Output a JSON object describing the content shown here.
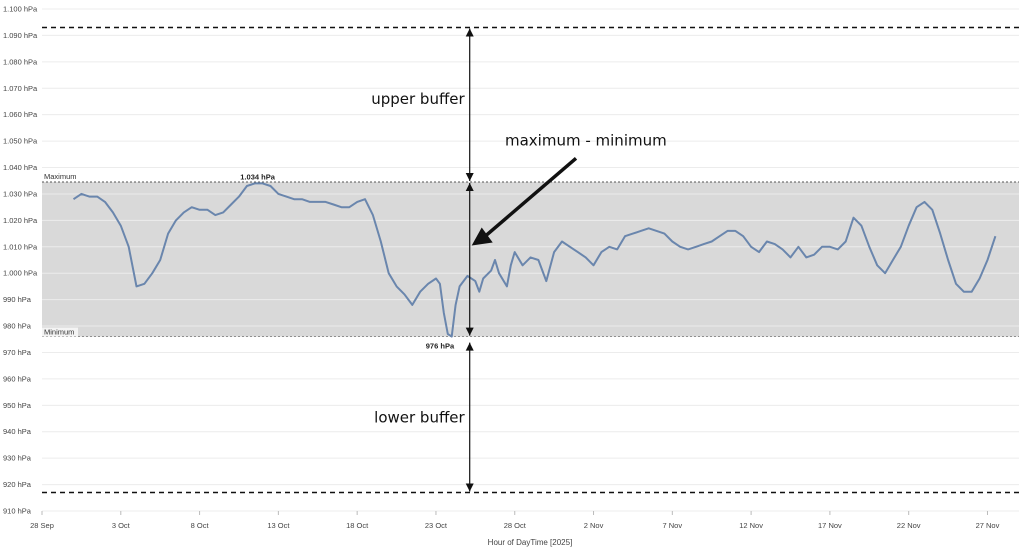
{
  "chart_data": {
    "type": "line",
    "title": "",
    "xlabel": "Hour of DayTime [2025]",
    "ylabel": "",
    "x_start": "2025-09-28",
    "x_end": "2025-11-29",
    "x_ticks": [
      {
        "label": "28 Sep",
        "date": "2025-09-28"
      },
      {
        "label": "3 Oct",
        "date": "2025-10-03"
      },
      {
        "label": "8 Oct",
        "date": "2025-10-08"
      },
      {
        "label": "13 Oct",
        "date": "2025-10-13"
      },
      {
        "label": "18 Oct",
        "date": "2025-10-18"
      },
      {
        "label": "23 Oct",
        "date": "2025-10-23"
      },
      {
        "label": "28 Oct",
        "date": "2025-10-28"
      },
      {
        "label": "2 Nov",
        "date": "2025-11-02"
      },
      {
        "label": "7 Nov",
        "date": "2025-11-07"
      },
      {
        "label": "12 Nov",
        "date": "2025-11-12"
      },
      {
        "label": "17 Nov",
        "date": "2025-11-17"
      },
      {
        "label": "22 Nov",
        "date": "2025-11-22"
      },
      {
        "label": "27 Nov",
        "date": "2025-11-27"
      }
    ],
    "ylim": [
      910,
      1100
    ],
    "y_ticks": [
      {
        "value": 1100,
        "label": "1.100 hPa"
      },
      {
        "value": 1090,
        "label": "1.090 hPa"
      },
      {
        "value": 1080,
        "label": "1.080 hPa"
      },
      {
        "value": 1070,
        "label": "1.070 hPa"
      },
      {
        "value": 1060,
        "label": "1.060 hPa"
      },
      {
        "value": 1050,
        "label": "1.050 hPa"
      },
      {
        "value": 1040,
        "label": "1.040 hPa"
      },
      {
        "value": 1030,
        "label": "1.030 hPa"
      },
      {
        "value": 1020,
        "label": "1.020 hPa"
      },
      {
        "value": 1010,
        "label": "1.010 hPa"
      },
      {
        "value": 1000,
        "label": "1.000 hPa"
      },
      {
        "value": 990,
        "label": "990 hPa"
      },
      {
        "value": 980,
        "label": "980 hPa"
      },
      {
        "value": 970,
        "label": "970 hPa"
      },
      {
        "value": 960,
        "label": "960 hPa"
      },
      {
        "value": 950,
        "label": "950 hPa"
      },
      {
        "value": 940,
        "label": "940 hPa"
      },
      {
        "value": 930,
        "label": "930 hPa"
      },
      {
        "value": 920,
        "label": "920 hPa"
      },
      {
        "value": 910,
        "label": "910 hPa"
      }
    ],
    "grid": true,
    "band": {
      "min": 976,
      "max": 1034.5,
      "max_label": "Maximum",
      "min_label": "Minimum",
      "color": "#d9d9d9"
    },
    "buffer_lines": {
      "upper": 1093,
      "lower": 917
    },
    "peak": {
      "date": "2025-10-12",
      "value": 1034,
      "label": "1.034 hPa"
    },
    "trough": {
      "date": "2025-10-23",
      "value": 976,
      "label": "976 hPa"
    },
    "annotations": {
      "upper": "upper buffer",
      "range": "maximum - minimum",
      "lower": "lower buffer",
      "marker_date": "2025-10-24.8"
    },
    "series": [
      {
        "color": "#6a86ad",
        "points": [
          [
            "2025-09-30T00",
            1028
          ],
          [
            "2025-09-30T12",
            1030
          ],
          [
            "2025-10-01T00",
            1029
          ],
          [
            "2025-10-01T12",
            1029
          ],
          [
            "2025-10-02T00",
            1027
          ],
          [
            "2025-10-02T12",
            1023
          ],
          [
            "2025-10-03T00",
            1018
          ],
          [
            "2025-10-03T12",
            1010
          ],
          [
            "2025-10-04T00",
            995
          ],
          [
            "2025-10-04T12",
            996
          ],
          [
            "2025-10-05T00",
            1000
          ],
          [
            "2025-10-05T12",
            1005
          ],
          [
            "2025-10-06T00",
            1015
          ],
          [
            "2025-10-06T12",
            1020
          ],
          [
            "2025-10-07T00",
            1023
          ],
          [
            "2025-10-07T12",
            1025
          ],
          [
            "2025-10-08T00",
            1024
          ],
          [
            "2025-10-08T12",
            1024
          ],
          [
            "2025-10-09T00",
            1022
          ],
          [
            "2025-10-09T12",
            1023
          ],
          [
            "2025-10-10T00",
            1026
          ],
          [
            "2025-10-10T12",
            1029
          ],
          [
            "2025-10-11T00",
            1033
          ],
          [
            "2025-10-11T12",
            1034
          ],
          [
            "2025-10-12T00",
            1034
          ],
          [
            "2025-10-12T12",
            1033
          ],
          [
            "2025-10-13T00",
            1030
          ],
          [
            "2025-10-13T12",
            1029
          ],
          [
            "2025-10-14T00",
            1028
          ],
          [
            "2025-10-14T12",
            1028
          ],
          [
            "2025-10-15T00",
            1027
          ],
          [
            "2025-10-15T12",
            1027
          ],
          [
            "2025-10-16T00",
            1027
          ],
          [
            "2025-10-16T12",
            1026
          ],
          [
            "2025-10-17T00",
            1025
          ],
          [
            "2025-10-17T12",
            1025
          ],
          [
            "2025-10-18T00",
            1027
          ],
          [
            "2025-10-18T12",
            1028
          ],
          [
            "2025-10-19T00",
            1022
          ],
          [
            "2025-10-19T12",
            1012
          ],
          [
            "2025-10-20T00",
            1000
          ],
          [
            "2025-10-20T12",
            995
          ],
          [
            "2025-10-21T00",
            992
          ],
          [
            "2025-10-21T12",
            988
          ],
          [
            "2025-10-22T00",
            993
          ],
          [
            "2025-10-22T12",
            996
          ],
          [
            "2025-10-23T00",
            998
          ],
          [
            "2025-10-23T06",
            996
          ],
          [
            "2025-10-23T12",
            985
          ],
          [
            "2025-10-23T18",
            977
          ],
          [
            "2025-10-24T00",
            976
          ],
          [
            "2025-10-24T06",
            988
          ],
          [
            "2025-10-24T12",
            995
          ],
          [
            "2025-10-25T00",
            999
          ],
          [
            "2025-10-25T12",
            997
          ],
          [
            "2025-10-25T18",
            993
          ],
          [
            "2025-10-26T00",
            998
          ],
          [
            "2025-10-26T12",
            1001
          ],
          [
            "2025-10-26T18",
            1005
          ],
          [
            "2025-10-27T00",
            1000
          ],
          [
            "2025-10-27T12",
            995
          ],
          [
            "2025-10-27T18",
            1003
          ],
          [
            "2025-10-28T00",
            1008
          ],
          [
            "2025-10-28T12",
            1003
          ],
          [
            "2025-10-29T00",
            1006
          ],
          [
            "2025-10-29T12",
            1005
          ],
          [
            "2025-10-30T00",
            997
          ],
          [
            "2025-10-30T12",
            1008
          ],
          [
            "2025-10-31T00",
            1012
          ],
          [
            "2025-10-31T12",
            1010
          ],
          [
            "2025-11-01T00",
            1008
          ],
          [
            "2025-11-01T12",
            1006
          ],
          [
            "2025-11-02T00",
            1003
          ],
          [
            "2025-11-02T12",
            1008
          ],
          [
            "2025-11-03T00",
            1010
          ],
          [
            "2025-11-03T12",
            1009
          ],
          [
            "2025-11-04T00",
            1014
          ],
          [
            "2025-11-04T12",
            1015
          ],
          [
            "2025-11-05T00",
            1016
          ],
          [
            "2025-11-05T12",
            1017
          ],
          [
            "2025-11-06T00",
            1016
          ],
          [
            "2025-11-06T12",
            1015
          ],
          [
            "2025-11-07T00",
            1012
          ],
          [
            "2025-11-07T12",
            1010
          ],
          [
            "2025-11-08T00",
            1009
          ],
          [
            "2025-11-08T12",
            1010
          ],
          [
            "2025-11-09T00",
            1011
          ],
          [
            "2025-11-09T12",
            1012
          ],
          [
            "2025-11-10T00",
            1014
          ],
          [
            "2025-11-10T12",
            1016
          ],
          [
            "2025-11-11T00",
            1016
          ],
          [
            "2025-11-11T12",
            1014
          ],
          [
            "2025-11-12T00",
            1010
          ],
          [
            "2025-11-12T12",
            1008
          ],
          [
            "2025-11-13T00",
            1012
          ],
          [
            "2025-11-13T12",
            1011
          ],
          [
            "2025-11-14T00",
            1009
          ],
          [
            "2025-11-14T12",
            1006
          ],
          [
            "2025-11-15T00",
            1010
          ],
          [
            "2025-11-15T12",
            1006
          ],
          [
            "2025-11-16T00",
            1007
          ],
          [
            "2025-11-16T12",
            1010
          ],
          [
            "2025-11-17T00",
            1010
          ],
          [
            "2025-11-17T12",
            1009
          ],
          [
            "2025-11-18T00",
            1012
          ],
          [
            "2025-11-18T12",
            1021
          ],
          [
            "2025-11-19T00",
            1018
          ],
          [
            "2025-11-19T12",
            1010
          ],
          [
            "2025-11-20T00",
            1003
          ],
          [
            "2025-11-20T12",
            1000
          ],
          [
            "2025-11-21T00",
            1005
          ],
          [
            "2025-11-21T12",
            1010
          ],
          [
            "2025-11-22T00",
            1018
          ],
          [
            "2025-11-22T12",
            1025
          ],
          [
            "2025-11-23T00",
            1027
          ],
          [
            "2025-11-23T12",
            1024
          ],
          [
            "2025-11-24T00",
            1015
          ],
          [
            "2025-11-24T12",
            1005
          ],
          [
            "2025-11-25T00",
            996
          ],
          [
            "2025-11-25T12",
            993
          ],
          [
            "2025-11-26T00",
            993
          ],
          [
            "2025-11-26T12",
            998
          ],
          [
            "2025-11-27T00",
            1005
          ],
          [
            "2025-11-27T12",
            1014
          ]
        ]
      }
    ]
  }
}
